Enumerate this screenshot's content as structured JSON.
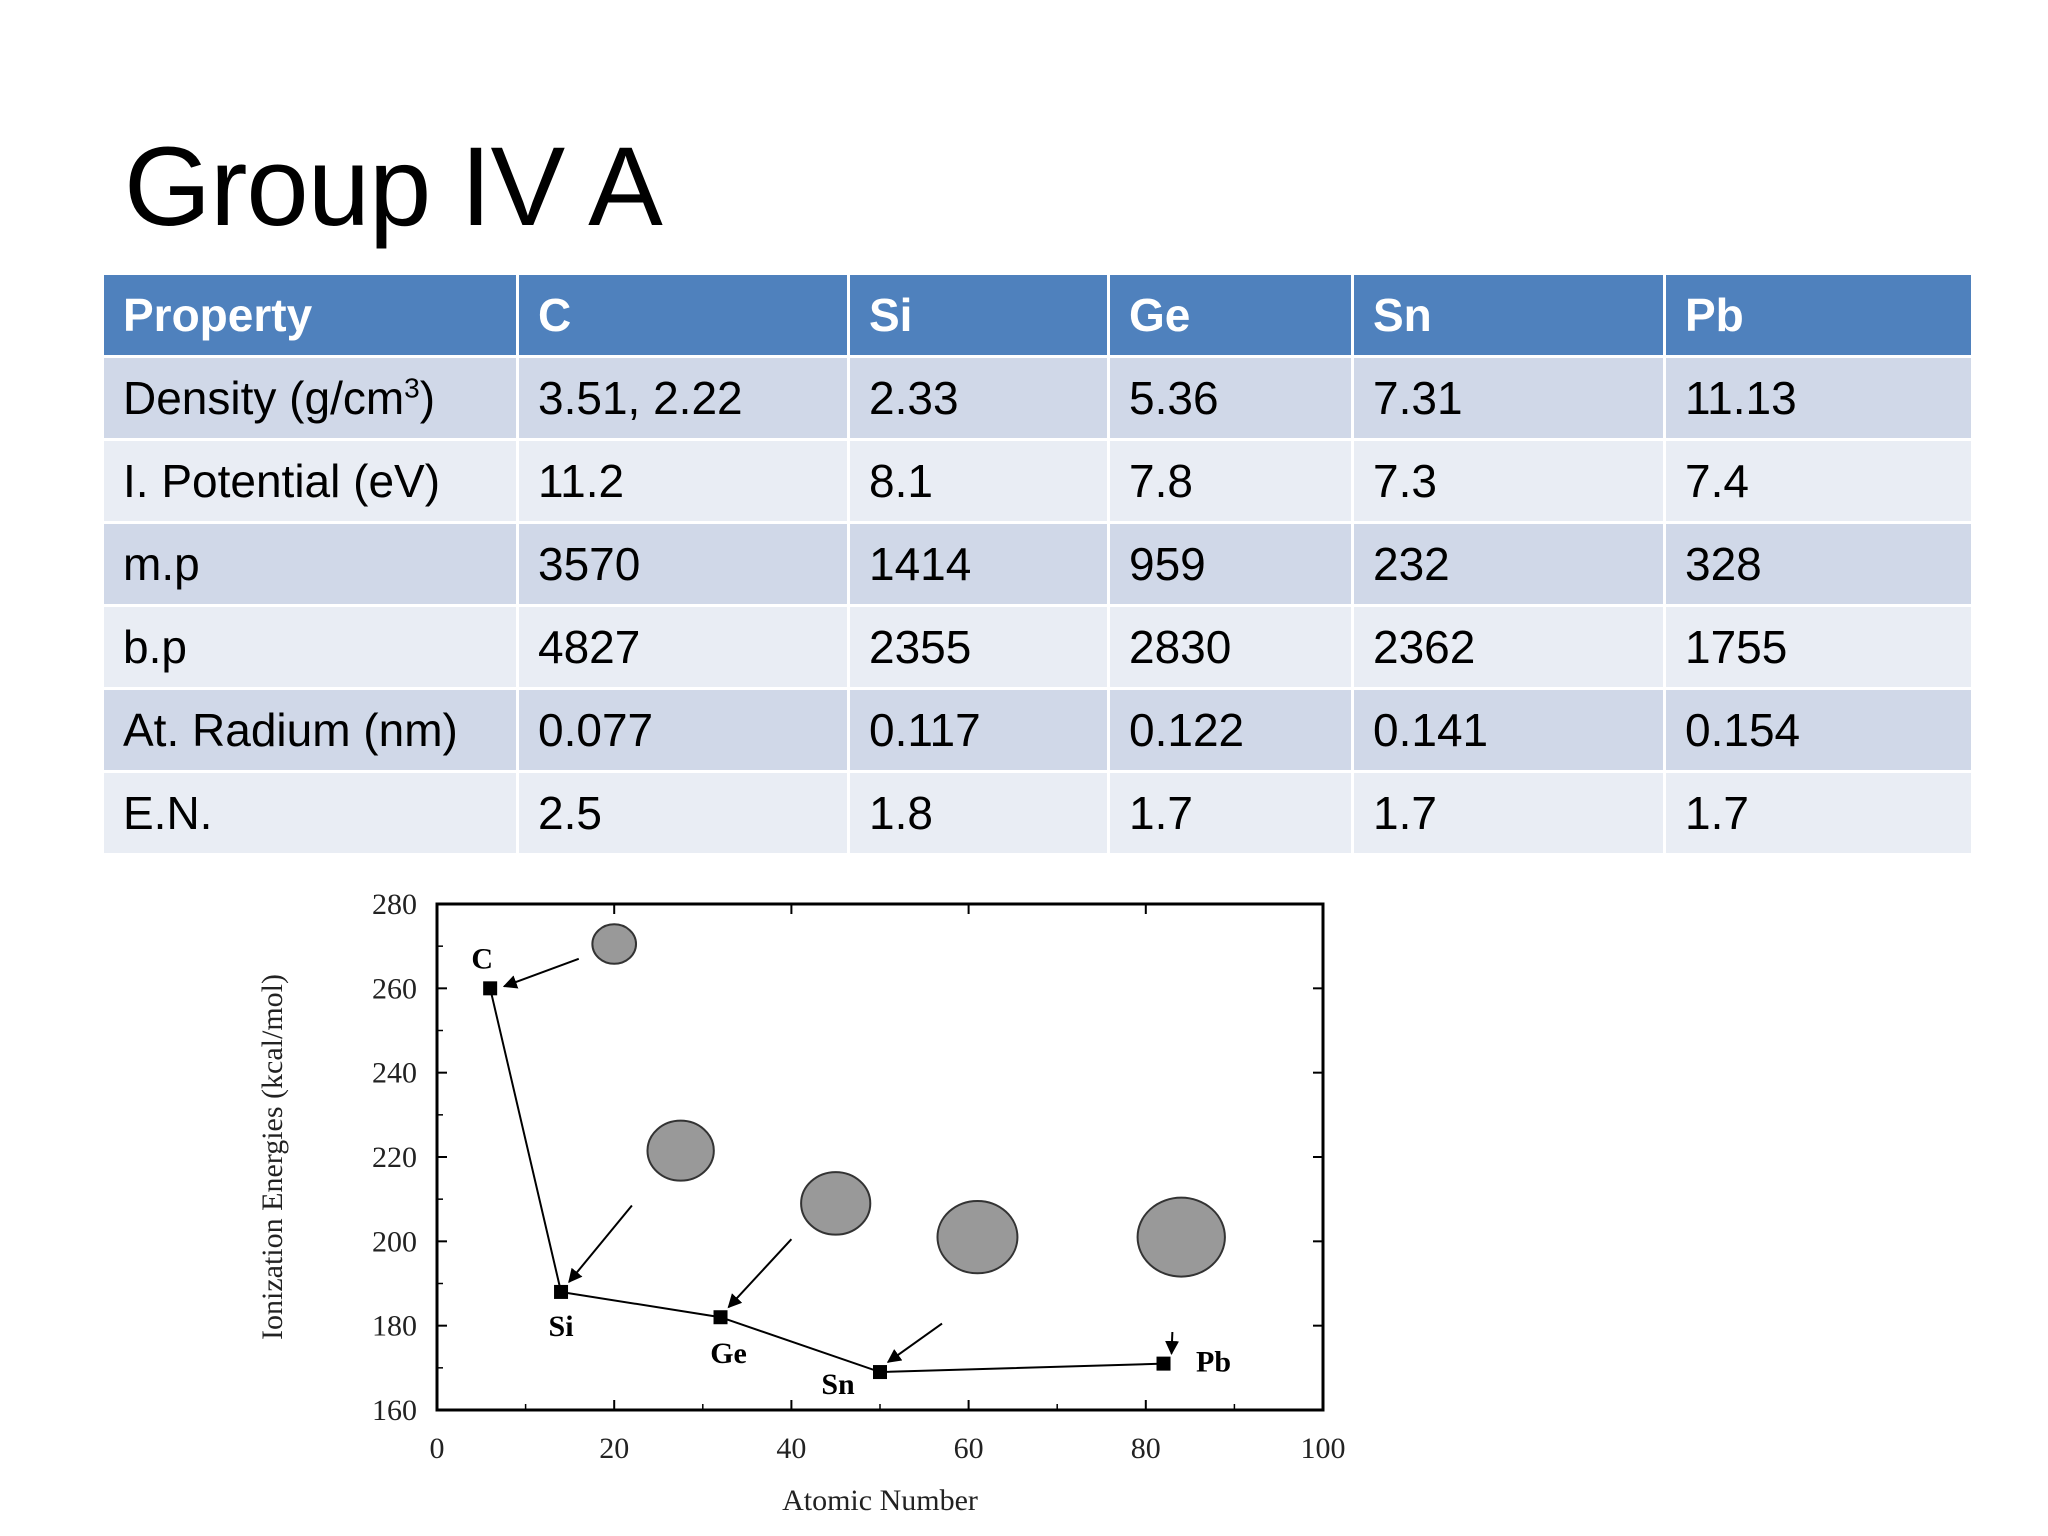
{
  "slide": {
    "title": "Group IV A"
  },
  "table": {
    "headers": [
      "Property",
      "C",
      "Si",
      "Ge",
      "Sn",
      "Pb"
    ],
    "rows": [
      {
        "property": "Density (g/cm",
        "property_sup": "3",
        "property_tail": ")",
        "values": [
          "3.51, 2.22",
          "2.33",
          "5.36",
          "7.31",
          "11.13"
        ]
      },
      {
        "property": "I. Potential (eV)",
        "values": [
          "11.2",
          "8.1",
          "7.8",
          "7.3",
          "7.4"
        ]
      },
      {
        "property": "m.p",
        "values": [
          "3570",
          "1414",
          "959",
          "232",
          "328"
        ]
      },
      {
        "property": "b.p",
        "values": [
          "4827",
          "2355",
          "2830",
          "2362",
          "1755"
        ]
      },
      {
        "property": "At. Radium (nm)",
        "values": [
          "0.077",
          "0.117",
          "0.122",
          "0.141",
          "0.154"
        ]
      },
      {
        "property": "E.N.",
        "values": [
          "2.5",
          "1.8",
          "1.7",
          "1.7",
          "1.7"
        ]
      }
    ]
  },
  "chart_data": {
    "type": "line",
    "title": "",
    "xlabel": "Atomic Number",
    "ylabel": "Ionization Energies (kcal/mol)",
    "xlim": [
      0,
      100
    ],
    "ylim": [
      160,
      280
    ],
    "xticks": [
      "0",
      "20",
      "40",
      "60",
      "80",
      "100"
    ],
    "yticks": [
      "160",
      "180",
      "200",
      "220",
      "240",
      "260",
      "280"
    ],
    "grid": false,
    "series": [
      {
        "points": [
          {
            "label": "C",
            "x": 6,
            "y": 260
          },
          {
            "label": "Si",
            "x": 14,
            "y": 188
          },
          {
            "label": "Ge",
            "x": 32,
            "y": 182
          },
          {
            "label": "Sn",
            "x": 50,
            "y": 169
          },
          {
            "label": "Pb",
            "x": 82,
            "y": 171
          }
        ]
      }
    ],
    "atom_circles": [
      {
        "element": "C",
        "radius_nm": 0.077
      },
      {
        "element": "Si",
        "radius_nm": 0.117
      },
      {
        "element": "Ge",
        "radius_nm": 0.122
      },
      {
        "element": "Sn",
        "radius_nm": 0.141
      },
      {
        "element": "Pb",
        "radius_nm": 0.154
      }
    ],
    "colors": {
      "line": "#000000",
      "circle_fill": "#999999",
      "circle_stroke": "#333333"
    }
  }
}
